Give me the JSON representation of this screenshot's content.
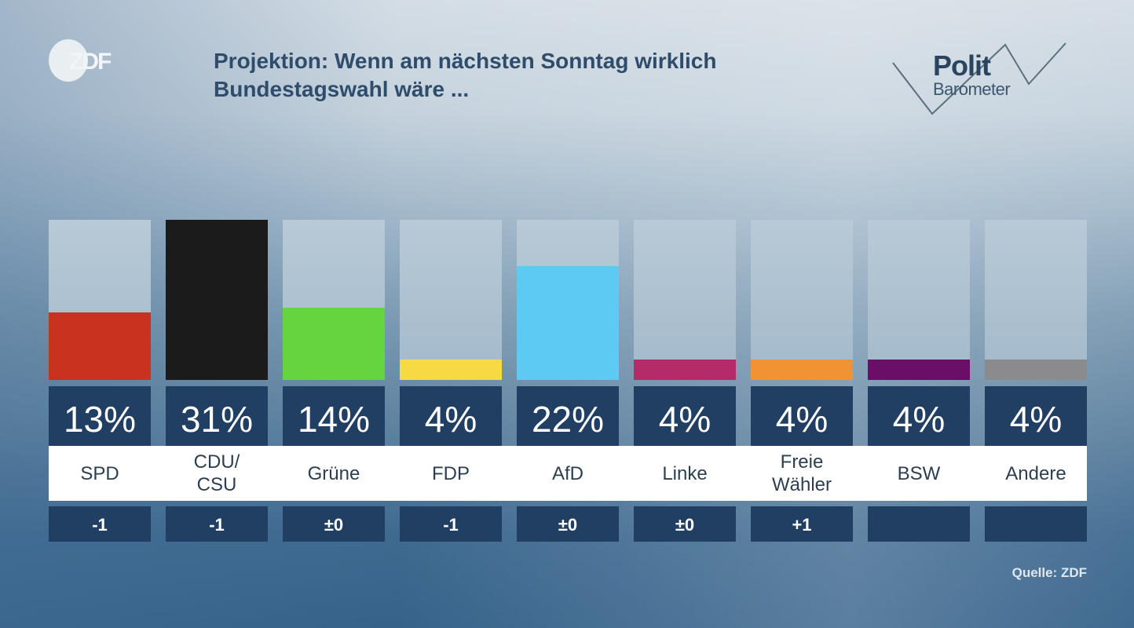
{
  "header": {
    "broadcaster_logo": "ZDF",
    "title_line1": "Projektion: Wenn am nächsten Sonntag wirklich",
    "title_line2": "Bundestagswahl wäre ...",
    "brand_line1": "Polit",
    "brand_line2": "Barometer"
  },
  "footer": {
    "source": "Quelle: ZDF"
  },
  "chart_data": {
    "type": "bar",
    "title": "Projektion: Wenn am nächsten Sonntag wirklich Bundestagswahl wäre ...",
    "xlabel": "",
    "ylabel": "",
    "ylim": [
      0,
      31
    ],
    "grid": false,
    "legend": "none",
    "unit": "%",
    "categories": [
      "SPD",
      "CDU/\nCSU",
      "Grüne",
      "FDP",
      "AfD",
      "Linke",
      "Freie\nWähler",
      "BSW",
      "Andere"
    ],
    "values": [
      13,
      31,
      14,
      4,
      22,
      4,
      4,
      4,
      4
    ],
    "value_labels": [
      "13%",
      "31%",
      "14%",
      "4%",
      "22%",
      "4%",
      "4%",
      "4%",
      "4%"
    ],
    "changes": [
      "-1",
      "-1",
      "±0",
      "-1",
      "±0",
      "±0",
      "+1",
      "",
      ""
    ],
    "colors": [
      "#c8321f",
      "#1b1b1b",
      "#66d43f",
      "#f6d943",
      "#5ccbf4",
      "#b52b6a",
      "#f29333",
      "#6a0e68",
      "#8b8a8c"
    ]
  }
}
